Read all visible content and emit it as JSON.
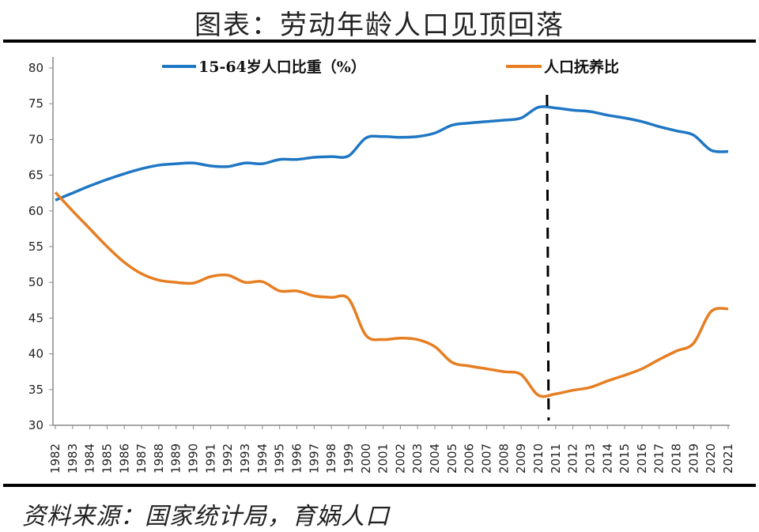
{
  "title": "图表：劳动年龄人口见顶回落",
  "source": "资料来源：国家统计局，育娲人口",
  "chart_data": {
    "type": "line",
    "title": "图表：劳动年龄人口见顶回落",
    "xlabel": "",
    "ylabel": "",
    "ylim": [
      30,
      80
    ],
    "yticks": [
      30,
      35,
      40,
      45,
      50,
      55,
      60,
      65,
      70,
      75,
      80
    ],
    "x": [
      1982,
      1983,
      1984,
      1985,
      1986,
      1987,
      1988,
      1989,
      1990,
      1991,
      1992,
      1993,
      1994,
      1995,
      1996,
      1997,
      1998,
      1999,
      2000,
      2001,
      2002,
      2003,
      2004,
      2005,
      2006,
      2007,
      2008,
      2009,
      2010,
      2011,
      2012,
      2013,
      2014,
      2015,
      2016,
      2017,
      2018,
      2019,
      2020,
      2021
    ],
    "grid": false,
    "legend_position": "top",
    "vertical_marker": {
      "between": [
        2010,
        2011
      ],
      "style": "dashed",
      "color": "#000000"
    },
    "series": [
      {
        "name": "15-64岁人口比重（%）",
        "color": "#1f77c4",
        "values": [
          61.5,
          62.5,
          63.5,
          64.4,
          65.2,
          65.9,
          66.4,
          66.6,
          66.7,
          66.3,
          66.2,
          66.7,
          66.6,
          67.2,
          67.2,
          67.5,
          67.6,
          67.7,
          70.2,
          70.4,
          70.3,
          70.4,
          70.9,
          72.0,
          72.3,
          72.5,
          72.7,
          73.0,
          74.5,
          74.4,
          74.1,
          73.9,
          73.4,
          73.0,
          72.5,
          71.8,
          71.2,
          70.6,
          68.5,
          68.3
        ]
      },
      {
        "name": "人口抚养比",
        "color": "#e67e22",
        "values": [
          62.6,
          60.0,
          57.5,
          55.0,
          52.8,
          51.2,
          50.3,
          50.0,
          49.9,
          50.8,
          51.0,
          50.0,
          50.1,
          48.8,
          48.8,
          48.1,
          47.9,
          47.7,
          42.6,
          42.0,
          42.2,
          42.0,
          41.0,
          38.8,
          38.3,
          37.9,
          37.5,
          37.1,
          34.2,
          34.4,
          34.9,
          35.3,
          36.2,
          37.0,
          37.9,
          39.2,
          40.4,
          41.5,
          45.9,
          46.3
        ]
      }
    ]
  }
}
